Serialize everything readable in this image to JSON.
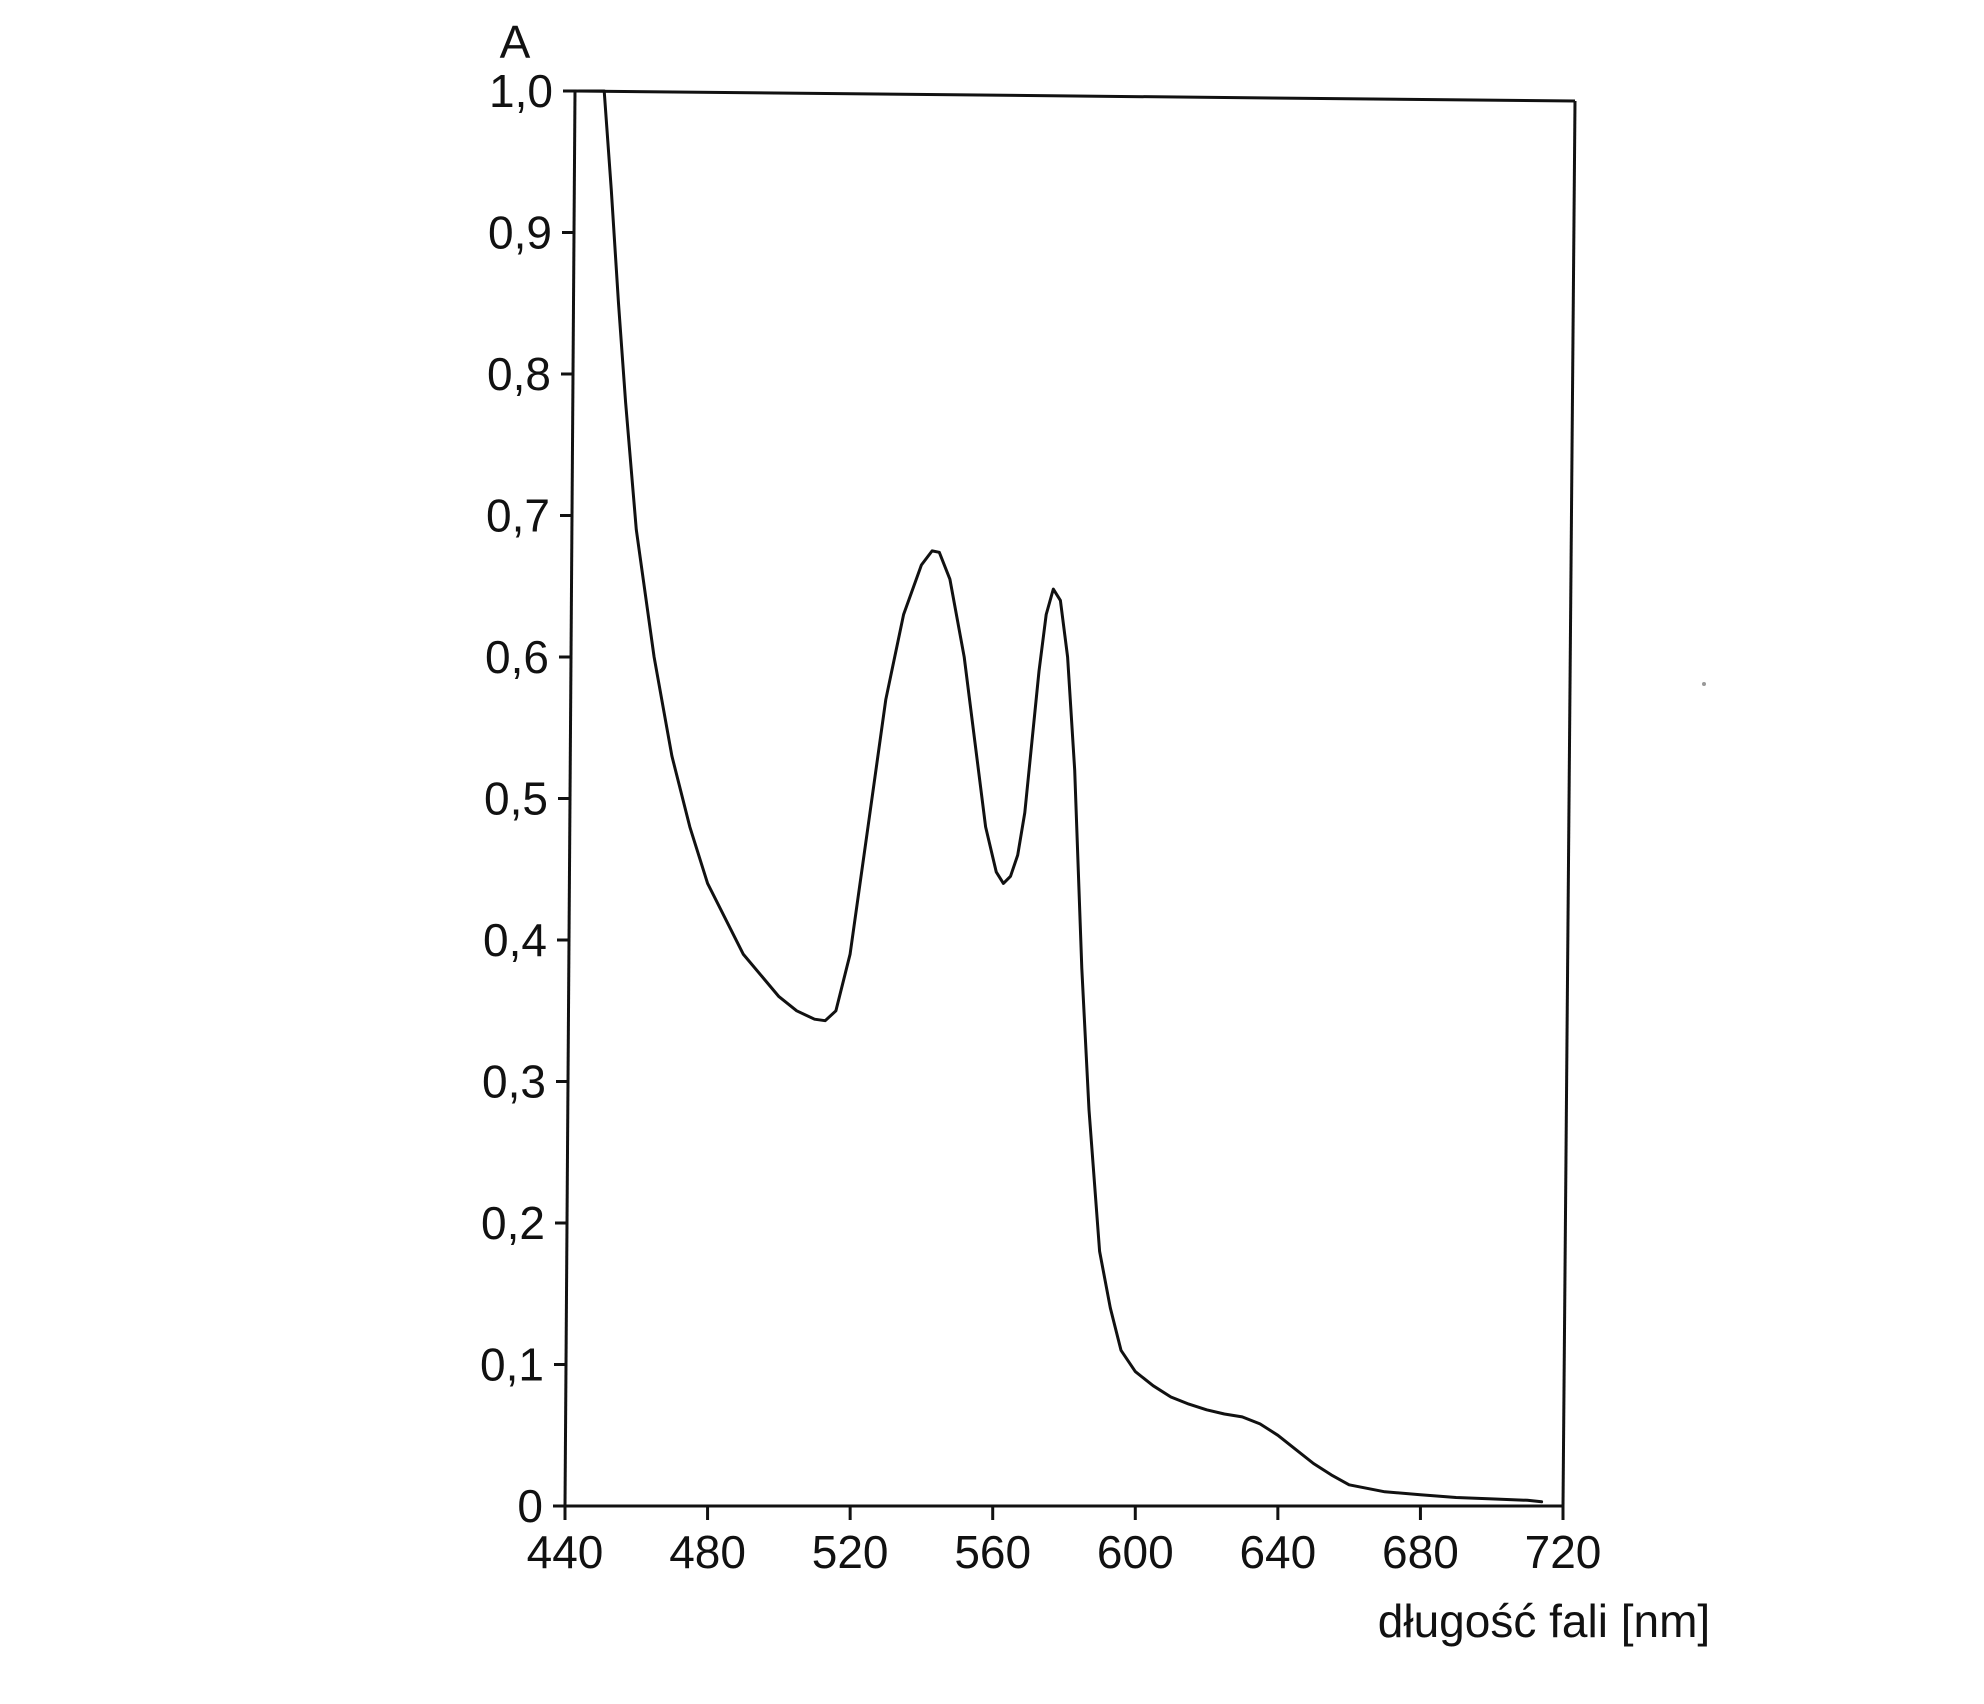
{
  "chart_data": {
    "type": "line",
    "title": "",
    "xlabel": "długość fali [nm]",
    "ylabel": "A",
    "xlim": [
      440,
      720
    ],
    "ylim": [
      0,
      1.0
    ],
    "grid": false,
    "x_ticks": [
      440,
      480,
      520,
      560,
      600,
      640,
      680,
      720
    ],
    "x_tick_labels": [
      "440",
      "480",
      "520",
      "560",
      "600",
      "640",
      "680",
      "720"
    ],
    "y_ticks": [
      0,
      0.1,
      0.2,
      0.3,
      0.4,
      0.5,
      0.6,
      0.7,
      0.8,
      0.9,
      1.0
    ],
    "y_tick_labels": [
      "0",
      "0,1",
      "0,2",
      "0,3",
      "0,4",
      "0,5",
      "0,6",
      "0,7",
      "0,8",
      "0,9",
      "1,0"
    ],
    "series": [
      {
        "x": [
          444,
          447,
          449,
          451,
          453,
          455,
          457,
          460,
          465,
          470,
          475,
          480,
          490,
          500,
          505,
          510,
          513,
          516,
          520,
          525,
          530,
          535,
          540,
          543,
          545,
          548,
          552,
          555,
          558,
          561,
          563,
          565,
          567,
          569,
          571,
          573,
          575,
          577,
          579,
          581,
          583,
          585,
          587,
          590,
          593,
          596,
          600,
          605,
          610,
          615,
          620,
          625,
          630,
          635,
          640,
          645,
          650,
          655,
          660,
          670,
          680,
          690,
          700,
          710,
          714
        ],
        "y": [
          1.0,
          1.0,
          1.0,
          1.0,
          0.93,
          0.85,
          0.78,
          0.69,
          0.6,
          0.53,
          0.48,
          0.44,
          0.39,
          0.36,
          0.35,
          0.344,
          0.343,
          0.35,
          0.39,
          0.48,
          0.57,
          0.63,
          0.665,
          0.675,
          0.674,
          0.655,
          0.6,
          0.54,
          0.48,
          0.448,
          0.44,
          0.445,
          0.46,
          0.49,
          0.54,
          0.59,
          0.63,
          0.648,
          0.64,
          0.6,
          0.52,
          0.38,
          0.28,
          0.18,
          0.14,
          0.11,
          0.095,
          0.085,
          0.077,
          0.072,
          0.068,
          0.065,
          0.063,
          0.058,
          0.05,
          0.04,
          0.03,
          0.022,
          0.015,
          0.01,
          0.008,
          0.006,
          0.005,
          0.004,
          0.003
        ]
      }
    ]
  }
}
